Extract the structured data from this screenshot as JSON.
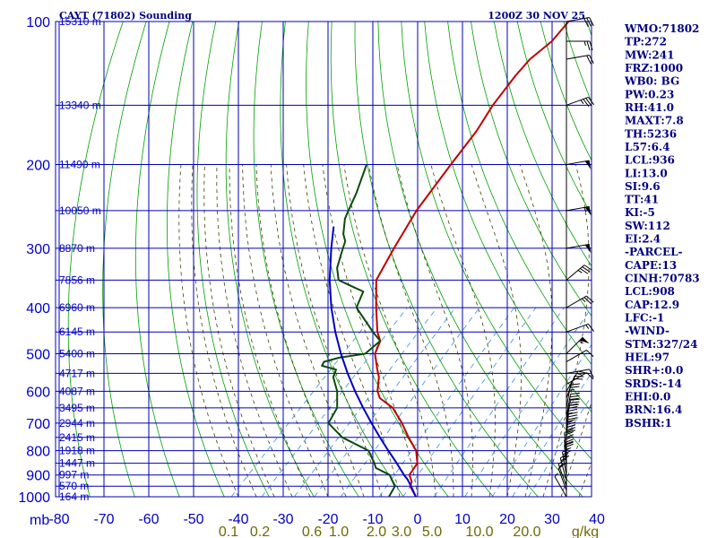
{
  "title": {
    "left": "CAYT (71802) Sounding",
    "right": "1200Z 30 NOV 25"
  },
  "chart_data": {
    "type": "line",
    "plot": "skew-t log-p sounding",
    "x_axis_label": "mb",
    "pressure_levels": [
      {
        "p": 100,
        "label": "100",
        "height": "15310 m"
      },
      {
        "p": 150,
        "label": "",
        "height": "13340 m"
      },
      {
        "p": 200,
        "label": "200",
        "height": "11490 m"
      },
      {
        "p": 250,
        "label": "",
        "height": "10050 m"
      },
      {
        "p": 300,
        "label": "300",
        "height": "8870 m"
      },
      {
        "p": 350,
        "label": "",
        "height": "7856 m"
      },
      {
        "p": 400,
        "label": "400",
        "height": "6960 m"
      },
      {
        "p": 450,
        "label": "",
        "height": "6145 m"
      },
      {
        "p": 500,
        "label": "500",
        "height": "5400 m"
      },
      {
        "p": 550,
        "label": "",
        "height": "4717 m"
      },
      {
        "p": 600,
        "label": "600",
        "height": "4087 m"
      },
      {
        "p": 650,
        "label": "",
        "height": "3495 m"
      },
      {
        "p": 700,
        "label": "700",
        "height": "2944 m"
      },
      {
        "p": 750,
        "label": "",
        "height": "2415 m"
      },
      {
        "p": 800,
        "label": "800",
        "height": "1918 m"
      },
      {
        "p": 850,
        "label": "",
        "height": "1447 m"
      },
      {
        "p": 900,
        "label": "900",
        "height": "997 m"
      },
      {
        "p": 950,
        "label": "",
        "height": "570 m"
      },
      {
        "p": 1000,
        "label": "1000",
        "height": "164 m"
      }
    ],
    "temperature_ticks": [
      -80,
      -70,
      -60,
      -50,
      -40,
      -30,
      -20,
      -10,
      0,
      10,
      20,
      30,
      40
    ],
    "temperature_tick_labels": [
      "-80",
      "-70",
      "-60",
      "-50",
      "-40",
      "-30",
      "-20",
      "-10",
      "0",
      "10",
      "20",
      "30",
      "40"
    ],
    "mixing_ratio_labels": [
      "0.1",
      "0.2",
      "0.6",
      "1.0",
      "2.0",
      "3.0",
      "5.0",
      "10.0",
      "20.0",
      "g/kg"
    ],
    "series": [
      {
        "name": "Temperature",
        "color": "#c00000",
        "points": [
          [
            1000,
            -0.4
          ],
          [
            950,
            -4.0
          ],
          [
            930,
            -4.6
          ],
          [
            900,
            -6.6
          ],
          [
            850,
            -7.4
          ],
          [
            800,
            -10.4
          ],
          [
            750,
            -15.0
          ],
          [
            700,
            -19.6
          ],
          [
            650,
            -25.0
          ],
          [
            620,
            -30.0
          ],
          [
            600,
            -32.0
          ],
          [
            560,
            -34.8
          ],
          [
            540,
            -36.8
          ],
          [
            500,
            -40.8
          ],
          [
            470,
            -42.4
          ],
          [
            450,
            -45.0
          ],
          [
            400,
            -50.6
          ],
          [
            350,
            -56.6
          ],
          [
            300,
            -59.6
          ],
          [
            250,
            -62.8
          ],
          [
            200,
            -65.2
          ],
          [
            170,
            -66.8
          ],
          [
            150,
            -68.8
          ],
          [
            130,
            -70.2
          ],
          [
            120,
            -70.6
          ],
          [
            110,
            -69.6
          ],
          [
            100,
            -70.2
          ]
        ]
      },
      {
        "name": "Dewpoint",
        "color": "#0a4a0a",
        "points": [
          [
            1000,
            -6.4
          ],
          [
            950,
            -7.4
          ],
          [
            900,
            -11.0
          ],
          [
            870,
            -15.6
          ],
          [
            850,
            -17.0
          ],
          [
            800,
            -21.0
          ],
          [
            750,
            -29.8
          ],
          [
            700,
            -36.0
          ],
          [
            650,
            -37.4
          ],
          [
            600,
            -41.0
          ],
          [
            560,
            -45.0
          ],
          [
            540,
            -46.0
          ],
          [
            530,
            -50.0
          ],
          [
            520,
            -50.4
          ],
          [
            510,
            -48.0
          ],
          [
            500,
            -43.0
          ],
          [
            470,
            -42.4
          ],
          [
            450,
            -46.0
          ],
          [
            400,
            -55.0
          ],
          [
            370,
            -57.0
          ],
          [
            360,
            -61.0
          ],
          [
            350,
            -65.0
          ],
          [
            330,
            -68.0
          ],
          [
            300,
            -71.0
          ],
          [
            290,
            -72.0
          ],
          [
            280,
            -74.0
          ],
          [
            260,
            -77.0
          ],
          [
            250,
            -78.0
          ],
          [
            230,
            -80.0
          ],
          [
            200,
            -84.0
          ]
        ]
      },
      {
        "name": "Parcel",
        "color": "#0000c0",
        "points": [
          [
            1000,
            -0.4
          ],
          [
            950,
            -3.8
          ],
          [
            920,
            -6.0
          ],
          [
            900,
            -7.8
          ],
          [
            850,
            -12.0
          ],
          [
            800,
            -16.6
          ],
          [
            750,
            -21.4
          ],
          [
            700,
            -26.4
          ],
          [
            650,
            -31.6
          ],
          [
            600,
            -37.0
          ],
          [
            550,
            -42.6
          ],
          [
            500,
            -48.4
          ],
          [
            450,
            -54.4
          ],
          [
            400,
            -60.6
          ],
          [
            350,
            -67.0
          ],
          [
            300,
            -73.6
          ],
          [
            270,
            -77.8
          ]
        ]
      }
    ],
    "wind_barbs": [
      {
        "p": 1000,
        "dir": 330,
        "spd": 5
      },
      {
        "p": 970,
        "dir": 340,
        "spd": 10
      },
      {
        "p": 950,
        "dir": 340,
        "spd": 15
      },
      {
        "p": 925,
        "dir": 345,
        "spd": 20
      },
      {
        "p": 900,
        "dir": 350,
        "spd": 25
      },
      {
        "p": 870,
        "dir": 355,
        "spd": 25
      },
      {
        "p": 850,
        "dir": 355,
        "spd": 30
      },
      {
        "p": 820,
        "dir": 355,
        "spd": 30
      },
      {
        "p": 800,
        "dir": 0,
        "spd": 30
      },
      {
        "p": 780,
        "dir": 0,
        "spd": 30
      },
      {
        "p": 750,
        "dir": 5,
        "spd": 35
      },
      {
        "p": 720,
        "dir": 5,
        "spd": 35
      },
      {
        "p": 700,
        "dir": 10,
        "spd": 30
      },
      {
        "p": 680,
        "dir": 10,
        "spd": 30
      },
      {
        "p": 650,
        "dir": 10,
        "spd": 25
      },
      {
        "p": 620,
        "dir": 20,
        "spd": 20
      },
      {
        "p": 600,
        "dir": 30,
        "spd": 15
      },
      {
        "p": 580,
        "dir": 60,
        "spd": 10
      },
      {
        "p": 550,
        "dir": 80,
        "spd": 10
      },
      {
        "p": 520,
        "dir": 60,
        "spd": 10
      },
      {
        "p": 500,
        "dir": 45,
        "spd": 55
      },
      {
        "p": 450,
        "dir": 70,
        "spd": 15
      },
      {
        "p": 400,
        "dir": 60,
        "spd": 25
      },
      {
        "p": 350,
        "dir": 50,
        "spd": 35
      },
      {
        "p": 300,
        "dir": 80,
        "spd": 50
      },
      {
        "p": 250,
        "dir": 80,
        "spd": 55
      },
      {
        "p": 200,
        "dir": 80,
        "spd": 50
      },
      {
        "p": 150,
        "dir": 70,
        "spd": 35
      },
      {
        "p": 120,
        "dir": 80,
        "spd": 20
      },
      {
        "p": 110,
        "dir": 90,
        "spd": 25
      },
      {
        "p": 100,
        "dir": 80,
        "spd": 30
      }
    ]
  },
  "indices": [
    "WMO:71802",
    "TP:272",
    "MW:241",
    "FRZ:1000",
    "WB0: BG",
    "PW:0.23",
    "RH:41.0",
    "MAXT:7.8",
    "TH:5236",
    "L57:6.4",
    "LCL:936",
    "LI:13.0",
    "SI:9.6",
    "TT:41",
    "KI:-5",
    "SW:112",
    "EI:2.4",
    "-PARCEL-",
    "CAPE:13",
    "CINH:70783",
    "LCL:908",
    "CAP:12.9",
    "LFC:-1",
    "-WIND-",
    "STM:327/24",
    "HEL:97",
    "SHR+:0.0",
    "SRDS:-14",
    "EHI:0.0",
    "BRN:16.4",
    "BSHR:1"
  ],
  "colors": {
    "grid": "#0000b4",
    "dry_adiabat": "#00a000",
    "moist_adiabat": "#404000",
    "mixing_ratio": "#3a8fd9",
    "temperature": "#c00000",
    "dewpoint": "#0a4a0a",
    "parcel": "#0000c0"
  }
}
